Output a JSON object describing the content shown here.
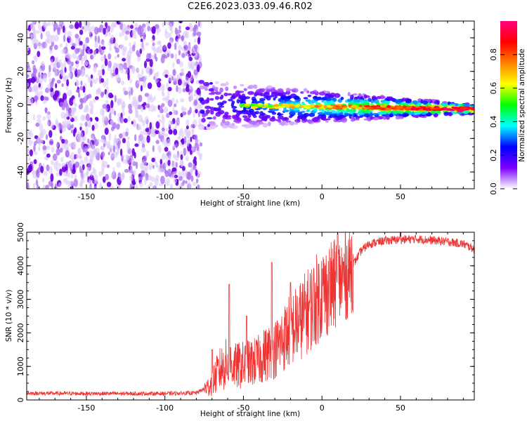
{
  "figure": {
    "title": "C2E6.2023.033.09.46.R02"
  },
  "chart_data": [
    {
      "type": "heatmap",
      "title": "",
      "xlabel": "Height of straight line (km)",
      "ylabel": "Frequency (Hz)",
      "xlim": [
        -188,
        97
      ],
      "ylim": [
        -50,
        50
      ],
      "x_ticks": [
        -150,
        -100,
        -50,
        0,
        50
      ],
      "y_ticks": [
        -40,
        -20,
        0,
        20,
        40
      ],
      "colorbar": {
        "label": "Normalized spectral amplitude",
        "range": [
          0,
          1
        ],
        "ticks": [
          0.0,
          0.2,
          0.4,
          0.6,
          0.8
        ],
        "tick_labels": [
          "0.0",
          "0.2",
          "0.4",
          "0.6",
          "0.8"
        ],
        "colormap": [
          "#ffffff",
          "#7b00ff",
          "#0000ff",
          "#00ffff",
          "#00ff00",
          "#ffff00",
          "#ff8000",
          "#ff0000",
          "#ff0080"
        ]
      },
      "regions": [
        {
          "x_range": [
            -188,
            -77
          ],
          "description_values": {
            "freq_range": [
              -50,
              50
            ],
            "amplitude_range": [
              0.0,
              0.15
            ]
          }
        },
        {
          "x_range": [
            -77,
            97
          ],
          "description_values": {
            "center_freq": [
              0,
              -2.5
            ],
            "amplitude_range": [
              0.1,
              0.95
            ]
          }
        }
      ]
    },
    {
      "type": "line",
      "title": "",
      "xlabel": "Height of straight line (km)",
      "ylabel": "SNR (10 * v/v)",
      "xlim": [
        -188,
        97
      ],
      "ylim": [
        0,
        5000
      ],
      "x_ticks": [
        -150,
        -100,
        -50,
        0,
        50
      ],
      "y_ticks": [
        0,
        1000,
        2000,
        3000,
        4000,
        5000
      ],
      "line_color": "#ee3333",
      "series": [
        {
          "x": [
            -188,
            -150,
            -100,
            -80,
            -72,
            -65,
            -60,
            -55,
            -50,
            -45,
            -40,
            -35,
            -30,
            -25,
            -20,
            -15,
            -10,
            -5,
            0,
            5,
            10,
            15,
            20,
            25,
            30,
            40,
            50,
            60,
            70,
            80,
            90,
            97
          ],
          "values": [
            200,
            190,
            190,
            210,
            400,
            900,
            1100,
            1000,
            1050,
            1100,
            1200,
            1400,
            1500,
            1800,
            2100,
            2300,
            2600,
            2900,
            3200,
            3300,
            3500,
            3700,
            4050,
            4450,
            4650,
            4750,
            4780,
            4800,
            4760,
            4720,
            4650,
            4500
          ],
          "spikes": [
            {
              "x": -70,
              "value": 1500
            },
            {
              "x": -59,
              "value": 3450
            },
            {
              "x": -48,
              "value": 2500
            },
            {
              "x": -32,
              "value": 4100
            },
            {
              "x": -20,
              "value": 3500
            },
            {
              "x": 5,
              "value": 3800
            },
            {
              "x": 10,
              "value": 4950
            },
            {
              "x": 50,
              "value": 5000
            }
          ]
        }
      ]
    }
  ]
}
